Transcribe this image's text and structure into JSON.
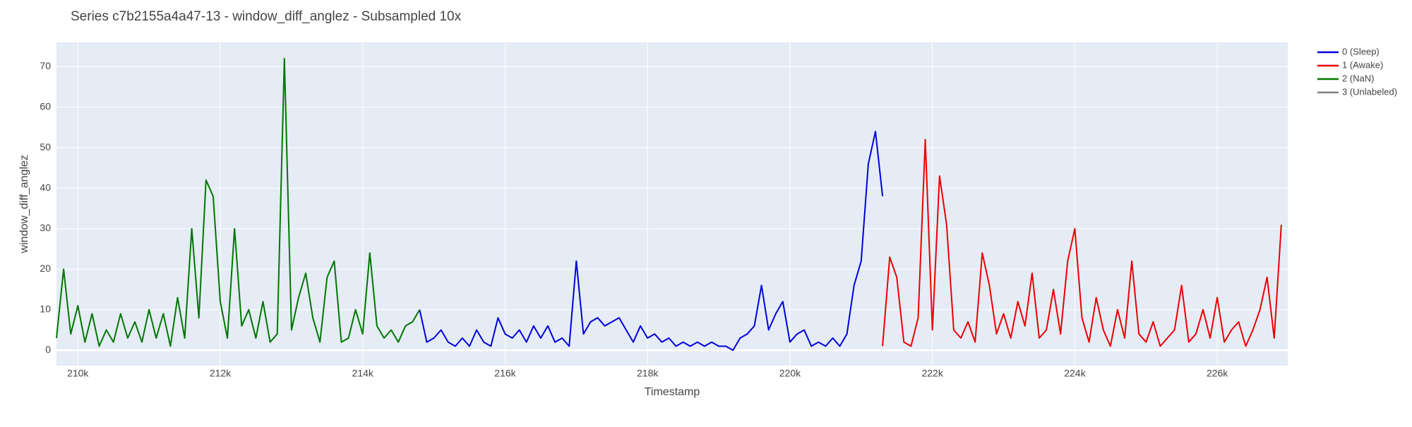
{
  "chart_data": {
    "type": "line",
    "title": "Series c7b2155a4a47-13 - window_diff_anglez - Subsampled 10x",
    "x_label": "Timestamp",
    "y_label": "window_diff_anglez",
    "xlim": [
      209700,
      226990
    ],
    "ylim": [
      -3.8,
      76
    ],
    "xticks": [
      {
        "value": 210000,
        "label": "210k"
      },
      {
        "value": 212000,
        "label": "212k"
      },
      {
        "value": 214000,
        "label": "214k"
      },
      {
        "value": 216000,
        "label": "216k"
      },
      {
        "value": 218000,
        "label": "218k"
      },
      {
        "value": 220000,
        "label": "220k"
      },
      {
        "value": 222000,
        "label": "222k"
      },
      {
        "value": 224000,
        "label": "224k"
      },
      {
        "value": 226000,
        "label": "226k"
      }
    ],
    "yticks": [
      0,
      10,
      20,
      30,
      40,
      50,
      60,
      70
    ],
    "grid": true,
    "legend": "right",
    "series": [
      {
        "name": "0 (Sleep)",
        "color": "#0000dd",
        "x": [
          214800,
          214900,
          215000,
          215100,
          215200,
          215300,
          215400,
          215500,
          215600,
          215700,
          215800,
          215900,
          216000,
          216100,
          216200,
          216300,
          216400,
          216500,
          216600,
          216700,
          216800,
          216900,
          217000,
          217100,
          217200,
          217300,
          217400,
          217500,
          217600,
          217700,
          217800,
          217900,
          218000,
          218100,
          218200,
          218300,
          218400,
          218500,
          218600,
          218700,
          218800,
          218900,
          219000,
          219100,
          219200,
          219300,
          219400,
          219500,
          219600,
          219700,
          219800,
          219900,
          220000,
          220100,
          220200,
          220300,
          220400,
          220500,
          220600,
          220700,
          220800,
          220900,
          221000,
          221100,
          221200,
          221300
        ],
        "values": [
          10,
          2,
          3,
          5,
          2,
          1,
          3,
          1,
          5,
          2,
          1,
          8,
          4,
          3,
          5,
          2,
          6,
          3,
          6,
          2,
          3,
          1,
          22,
          4,
          7,
          8,
          6,
          7,
          8,
          5,
          2,
          6,
          3,
          4,
          2,
          3,
          1,
          2,
          1,
          2,
          1,
          2,
          1,
          1,
          0,
          3,
          4,
          6,
          16,
          5,
          9,
          12,
          2,
          4,
          5,
          1,
          2,
          1,
          3,
          1,
          4,
          16,
          22,
          46,
          54,
          38
        ]
      },
      {
        "name": "1 (Awake)",
        "color": "#ee0000",
        "x": [
          221300,
          221400,
          221500,
          221600,
          221700,
          221800,
          221900,
          222000,
          222100,
          222200,
          222300,
          222400,
          222500,
          222600,
          222700,
          222800,
          222900,
          223000,
          223100,
          223200,
          223300,
          223400,
          223500,
          223600,
          223700,
          223800,
          223900,
          224000,
          224100,
          224200,
          224300,
          224400,
          224500,
          224600,
          224700,
          224800,
          224900,
          225000,
          225100,
          225200,
          225300,
          225400,
          225500,
          225600,
          225700,
          225800,
          225900,
          226000,
          226100,
          226200,
          226300,
          226400,
          226500,
          226600,
          226700,
          226800,
          226900
        ],
        "values": [
          1,
          23,
          18,
          2,
          1,
          8,
          52,
          5,
          43,
          31,
          5,
          3,
          7,
          2,
          24,
          16,
          4,
          9,
          3,
          12,
          6,
          19,
          3,
          5,
          15,
          4,
          22,
          30,
          8,
          2,
          13,
          5,
          1,
          10,
          3,
          22,
          4,
          2,
          7,
          1,
          3,
          5,
          16,
          2,
          4,
          10,
          3,
          13,
          2,
          5,
          7,
          1,
          5,
          10,
          18,
          3,
          31
        ]
      },
      {
        "name": "2 (NaN)",
        "color": "#007700",
        "x": [
          209700,
          209800,
          209900,
          210000,
          210100,
          210200,
          210300,
          210400,
          210500,
          210600,
          210700,
          210800,
          210900,
          211000,
          211100,
          211200,
          211300,
          211400,
          211500,
          211600,
          211700,
          211800,
          211900,
          212000,
          212100,
          212200,
          212300,
          212400,
          212500,
          212600,
          212700,
          212800,
          212900,
          213000,
          213100,
          213200,
          213300,
          213400,
          213500,
          213600,
          213700,
          213800,
          213900,
          214000,
          214100,
          214200,
          214300,
          214400,
          214500,
          214600,
          214700,
          214800
        ],
        "values": [
          3,
          20,
          4,
          11,
          2,
          9,
          1,
          5,
          2,
          9,
          3,
          7,
          2,
          10,
          3,
          9,
          1,
          13,
          3,
          30,
          8,
          42,
          38,
          12,
          3,
          30,
          6,
          10,
          3,
          12,
          2,
          4,
          72,
          5,
          13,
          19,
          8,
          2,
          18,
          22,
          2,
          3,
          10,
          4,
          24,
          6,
          3,
          5,
          2,
          6,
          7,
          10
        ]
      },
      {
        "name": "3 (Unlabeled)",
        "color": "#808080",
        "x": [],
        "values": []
      }
    ]
  }
}
